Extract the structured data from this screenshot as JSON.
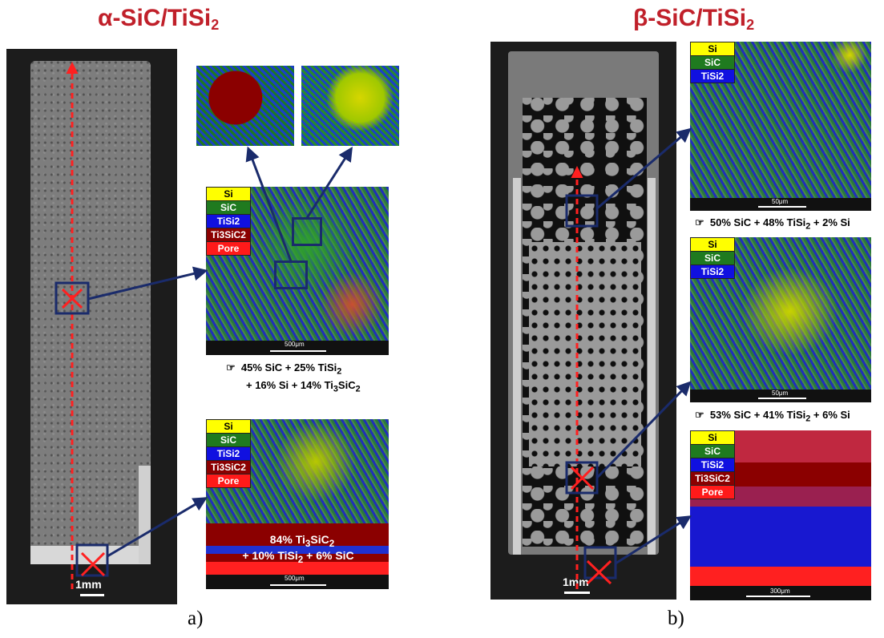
{
  "panels": [
    {
      "title_prefix": "α-SiC/TiSi",
      "title_sub": "2",
      "label": "a)",
      "sem_scale": "1mm",
      "legend_large": [
        "Si",
        "SiC",
        "TiSi2",
        "Ti3SiC2",
        "Pore"
      ],
      "map_scale": "500μm",
      "caption1": "45% SiC + 25% TiSi",
      "caption1_sub": "2",
      "caption2": "+ 16% Si + 14% Ti",
      "caption2_sub1": "3",
      "caption2_mid": "SiC",
      "caption2_sub2": "2",
      "overlay_line1": "84% Ti",
      "overlay_line1_sub1": "3",
      "overlay_line1_mid": "SiC",
      "overlay_line1_sub2": "2",
      "overlay_line2": "+ 10% TiSi",
      "overlay_line2_sub": "2",
      "overlay_line2_end": " + 6% SiC",
      "bottom_scale": "500μm"
    },
    {
      "title_prefix": "β-SiC/TiSi",
      "title_sub": "2",
      "label": "b)",
      "sem_scale": "1mm",
      "legend_small": [
        "Si",
        "SiC",
        "TiSi2"
      ],
      "map1_scale": "50μm",
      "caption1": "50% SiC + 48% TiSi",
      "caption1_sub": "2",
      "caption1_end": " + 2% Si",
      "map2_scale": "50μm",
      "caption2": "53% SiC + 41% TiSi",
      "caption2_sub": "2",
      "caption2_end": " + 6% Si",
      "map3_scale": "300μm"
    }
  ],
  "colors": {
    "title": "#c0202a",
    "si": "#ffff00",
    "sic": "#1f7a1f",
    "tisi2": "#1010e0",
    "ti3sic2": "#8b0000",
    "pore": "#ff1a1a",
    "arrow": "#1a2b6b"
  }
}
